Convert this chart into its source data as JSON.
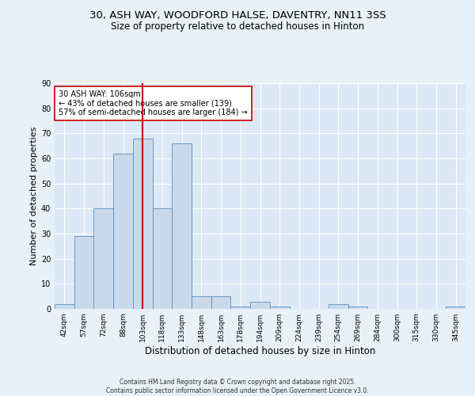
{
  "title_line1": "30, ASH WAY, WOODFORD HALSE, DAVENTRY, NN11 3SS",
  "title_line2": "Size of property relative to detached houses in Hinton",
  "xlabel": "Distribution of detached houses by size in Hinton",
  "ylabel": "Number of detached properties",
  "categories": [
    "42sqm",
    "57sqm",
    "72sqm",
    "88sqm",
    "103sqm",
    "118sqm",
    "133sqm",
    "148sqm",
    "163sqm",
    "178sqm",
    "194sqm",
    "209sqm",
    "224sqm",
    "239sqm",
    "254sqm",
    "269sqm",
    "284sqm",
    "300sqm",
    "315sqm",
    "330sqm",
    "345sqm"
  ],
  "values": [
    2,
    29,
    40,
    62,
    68,
    40,
    66,
    5,
    5,
    1,
    3,
    1,
    0,
    0,
    2,
    1,
    0,
    0,
    0,
    0,
    1
  ],
  "bar_color": "#c9d9ea",
  "bar_edge_color": "#5a8fc0",
  "bar_width": 1.0,
  "annotation_text": "30 ASH WAY: 106sqm\n← 43% of detached houses are smaller (139)\n57% of semi-detached houses are larger (184) →",
  "vline_color": "#cc0000",
  "vline_x": 4,
  "ylim": [
    0,
    90
  ],
  "yticks": [
    0,
    10,
    20,
    30,
    40,
    50,
    60,
    70,
    80,
    90
  ],
  "footer_text": "Contains HM Land Registry data © Crown copyright and database right 2025.\nContains public sector information licensed under the Open Government Licence v3.0.",
  "plot_bg_color": "#dce8f5",
  "grid_color": "#ffffff",
  "fig_bg_color": "#e8f0f8",
  "annotation_box_color": "#ffffff",
  "annotation_box_edge": "#cc0000",
  "title_fontsize": 9.5,
  "subtitle_fontsize": 8.5,
  "axis_label_fontsize": 8,
  "tick_fontsize": 6.5,
  "annotation_fontsize": 7,
  "footer_fontsize": 5.5
}
